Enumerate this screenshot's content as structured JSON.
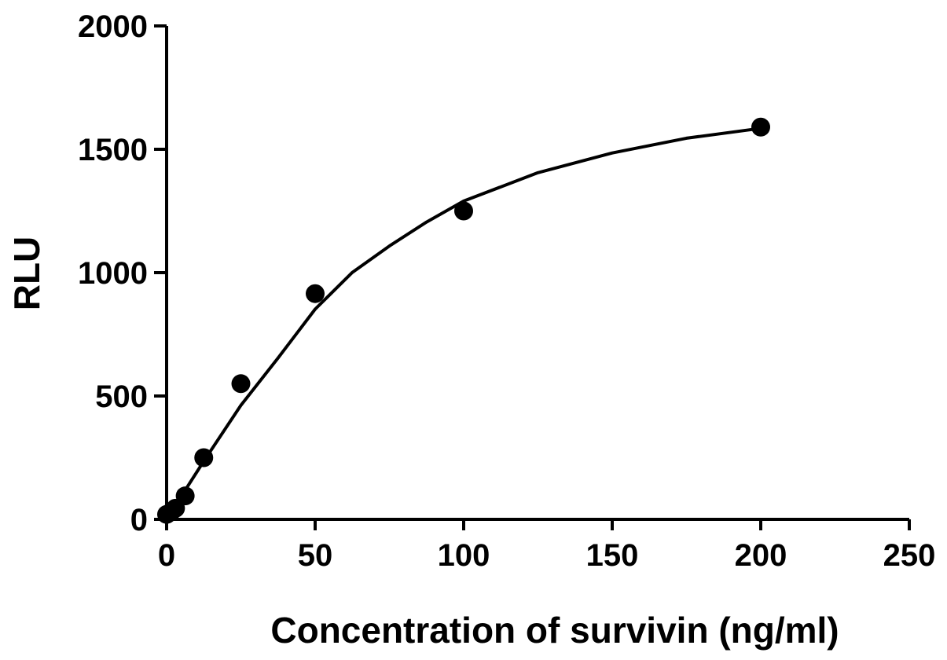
{
  "chart_data": {
    "type": "scatter",
    "title": "",
    "xlabel": "Concentration of survivin (ng/ml)",
    "ylabel": "RLU",
    "xlim": [
      0,
      250
    ],
    "ylim": [
      0,
      2000
    ],
    "xticks": [
      0,
      50,
      100,
      150,
      200,
      250
    ],
    "yticks": [
      0,
      500,
      1000,
      1500,
      2000
    ],
    "grid": false,
    "legend": "none",
    "series": [
      {
        "points": [
          {
            "x": 0,
            "y": 20
          },
          {
            "x": 1.5,
            "y": 30
          },
          {
            "x": 3,
            "y": 45
          },
          {
            "x": 6.25,
            "y": 95
          },
          {
            "x": 12.5,
            "y": 250
          },
          {
            "x": 25,
            "y": 550
          },
          {
            "x": 50,
            "y": 915
          },
          {
            "x": 100,
            "y": 1250
          },
          {
            "x": 200,
            "y": 1590
          }
        ],
        "color": "#000000"
      }
    ],
    "fit_curve": {
      "model": "one-phase association",
      "points": [
        {
          "x": 0,
          "y": 0
        },
        {
          "x": 6.25,
          "y": 118
        },
        {
          "x": 12.5,
          "y": 236
        },
        {
          "x": 25,
          "y": 462
        },
        {
          "x": 37.5,
          "y": 654
        },
        {
          "x": 50,
          "y": 852
        },
        {
          "x": 62.5,
          "y": 1001
        },
        {
          "x": 75,
          "y": 1108
        },
        {
          "x": 87.5,
          "y": 1205
        },
        {
          "x": 100,
          "y": 1290
        },
        {
          "x": 125,
          "y": 1405
        },
        {
          "x": 150,
          "y": 1485
        },
        {
          "x": 175,
          "y": 1545
        },
        {
          "x": 200,
          "y": 1585
        }
      ],
      "color": "#000000"
    }
  }
}
